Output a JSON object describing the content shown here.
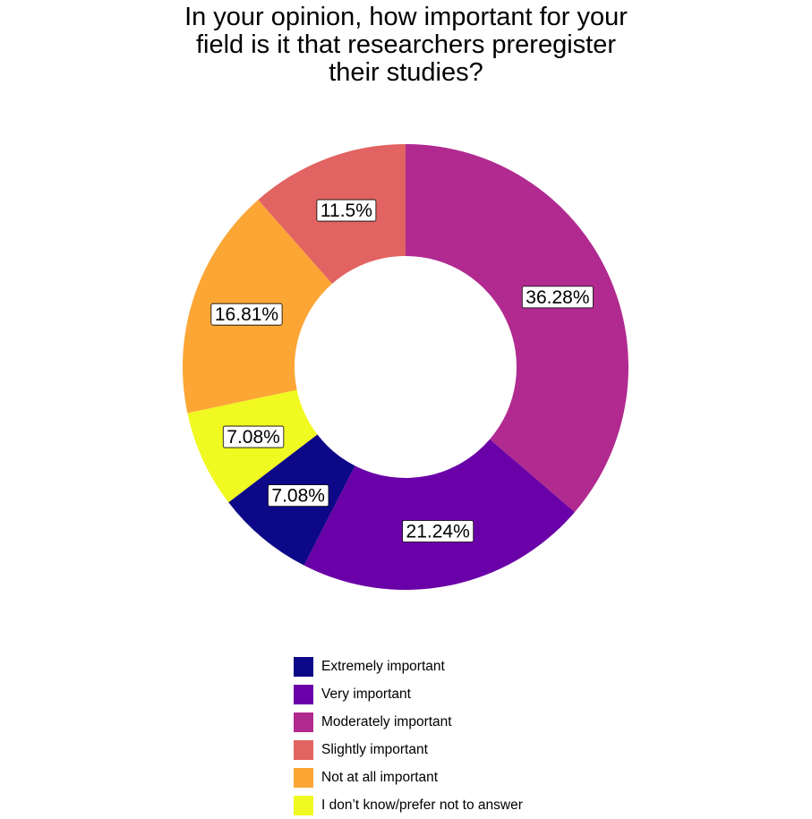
{
  "chart_data": {
    "type": "pie",
    "title": "In your opinion, how important for your\nfield is it that researchers preregister\ntheir studies?",
    "slices": [
      {
        "name": "Moderately important",
        "value": 36.28,
        "label": "36.28%",
        "color": "#b12a90"
      },
      {
        "name": "Very important",
        "value": 21.24,
        "label": "21.24%",
        "color": "#6a00a8"
      },
      {
        "name": "Extremely important",
        "value": 7.08,
        "label": "7.08%",
        "color": "#0d0887"
      },
      {
        "name": "I don’t know/prefer not to answer",
        "value": 7.08,
        "label": "7.08%",
        "color": "#f0f921"
      },
      {
        "name": "Not at all important",
        "value": 16.81,
        "label": "16.81%",
        "color": "#fca636"
      },
      {
        "name": "Slightly important",
        "value": 11.5,
        "label": "11.5%",
        "color": "#e16462"
      }
    ],
    "legend": {
      "position": "bottom",
      "items": [
        {
          "label": "Extremely important",
          "color": "#0d0887"
        },
        {
          "label": "Very important",
          "color": "#6a00a8"
        },
        {
          "label": "Moderately important",
          "color": "#b12a90"
        },
        {
          "label": "Slightly important",
          "color": "#e16462"
        },
        {
          "label": "Not at all important",
          "color": "#fca636"
        },
        {
          "label": "I don’t know/prefer not to answer",
          "color": "#f0f921"
        }
      ]
    }
  }
}
